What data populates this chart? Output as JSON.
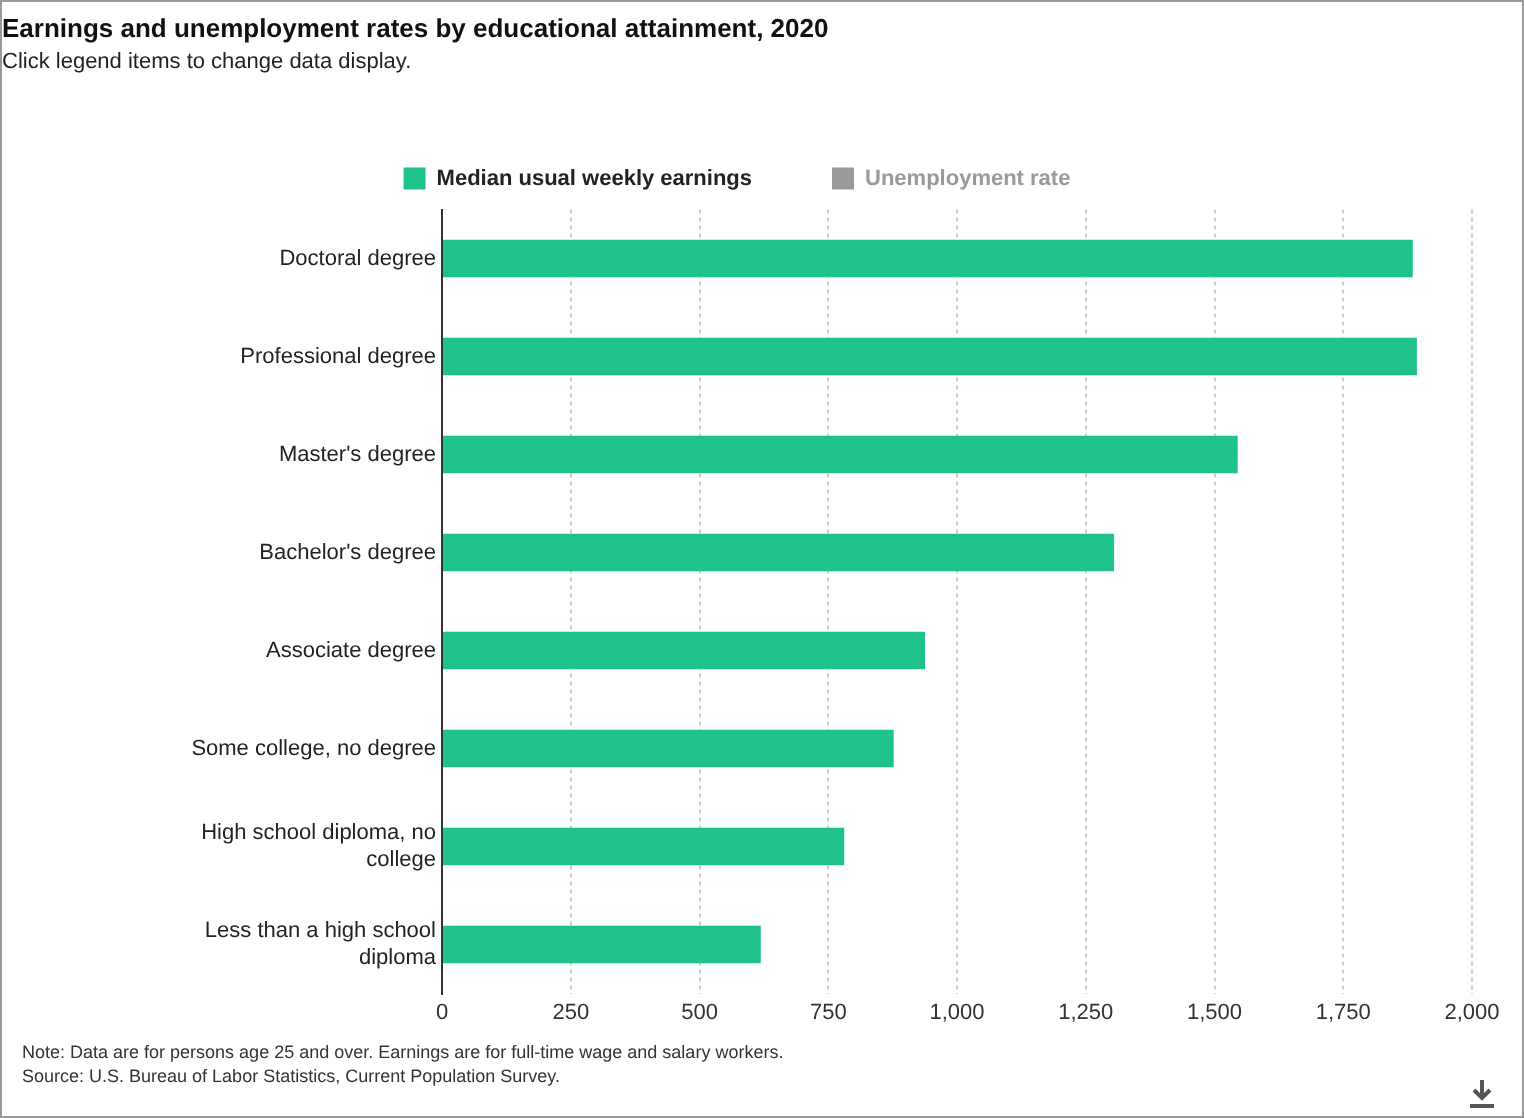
{
  "chart_data": {
    "type": "bar",
    "orientation": "horizontal",
    "title": "Earnings and unemployment rates by educational attainment, 2020",
    "subtitle": "Click legend items to change data display.",
    "categories": [
      "Doctoral degree",
      "Professional degree",
      "Master's degree",
      "Bachelor's degree",
      "Associate degree",
      "Some college, no degree",
      "High school diploma, no college",
      "Less than a high school diploma"
    ],
    "series": [
      {
        "name": "Median usual weekly earnings",
        "color": "#1fc28b",
        "values": [
          1885,
          1893,
          1545,
          1305,
          938,
          877,
          781,
          619
        ]
      },
      {
        "name": "Unemployment rate",
        "color": "#999999",
        "values": [
          null,
          null,
          null,
          null,
          null,
          null,
          null,
          null
        ]
      }
    ],
    "xlim": [
      0,
      2000
    ],
    "xticks": [
      0,
      250,
      500,
      750,
      {
        "value": 1000,
        "label": "1,000"
      },
      {
        "value": 1250,
        "label": "1,250"
      },
      {
        "value": 1500,
        "label": "1,500"
      },
      {
        "value": 1750,
        "label": "1,750"
      },
      {
        "value": 2000,
        "label": "2,000"
      }
    ],
    "grid": "x",
    "legend": "top",
    "annotations": [
      "Note: Data are for persons age 25 and over. Earnings are for full-time wage and salary workers.",
      "Source: U.S. Bureau of Labor Statistics, Current Population Survey."
    ]
  }
}
